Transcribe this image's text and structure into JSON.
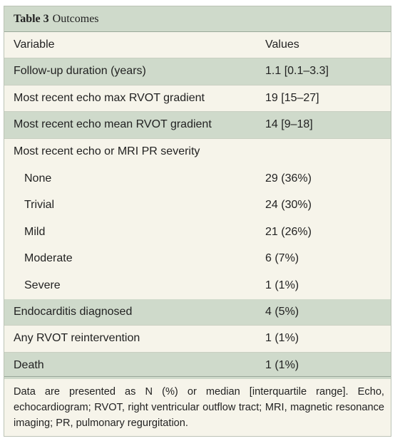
{
  "table": {
    "number": "Table 3",
    "caption": "Outcomes",
    "headers": {
      "variable": "Variable",
      "values": "Values"
    },
    "rows": [
      {
        "variable": "Follow-up duration (years)",
        "value": "1.1 [0.1–3.3]"
      },
      {
        "variable": "Most recent echo max RVOT gradient",
        "value": "19 [15–27]"
      },
      {
        "variable": "Most recent echo mean RVOT gradient",
        "value": "14 [9–18]"
      },
      {
        "variable": "Most recent echo or MRI PR severity",
        "value": ""
      },
      {
        "variable": "None",
        "value": "29 (36%)"
      },
      {
        "variable": "Trivial",
        "value": "24 (30%)"
      },
      {
        "variable": "Mild",
        "value": "21 (26%)"
      },
      {
        "variable": "Moderate",
        "value": "6 (7%)"
      },
      {
        "variable": "Severe",
        "value": "1 (1%)"
      },
      {
        "variable": "Endocarditis diagnosed",
        "value": "4 (5%)"
      },
      {
        "variable": "Any RVOT reintervention",
        "value": "1 (1%)"
      },
      {
        "variable": "Death",
        "value": "1 (1%)"
      }
    ],
    "footnote": "Data are presented as N (%) or median [interquartile range]. Echo, echocardiogram; RVOT, right ventricular outflow tract; MRI, magnetic resonance imaging; PR, pulmonary regurgitation."
  }
}
